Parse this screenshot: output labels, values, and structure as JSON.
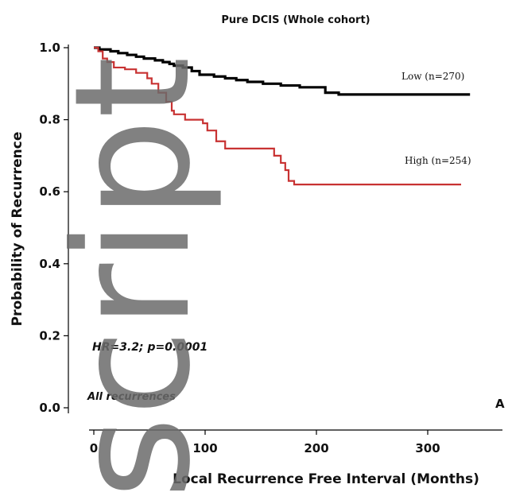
{
  "chart_data": {
    "type": "line",
    "title": "Pure DCIS (Whole cohort)",
    "xlabel": "Local Recurrence Free Interval (Months)",
    "ylabel": "Probability of Recurrence",
    "xlim": [
      -5,
      360
    ],
    "ylim": [
      -0.02,
      1.02
    ],
    "x_ticks": [
      0,
      100,
      200,
      300
    ],
    "x_tick_labels": [
      "0",
      "100",
      "200",
      "300"
    ],
    "y_ticks": [
      0.0,
      0.2,
      0.4,
      0.6,
      0.8,
      1.0
    ],
    "y_tick_labels": [
      "0.0",
      "0.2",
      "0.4",
      "0.6",
      "0.8",
      "1.0"
    ],
    "grid": false,
    "series": [
      {
        "name": "Low (n=270)",
        "color": "#000000",
        "step": true,
        "x": [
          0,
          5,
          15,
          22,
          30,
          38,
          45,
          55,
          62,
          68,
          72,
          80,
          88,
          95,
          108,
          118,
          128,
          138,
          152,
          168,
          185,
          208,
          220,
          250,
          280,
          338
        ],
        "y": [
          1.0,
          0.995,
          0.99,
          0.985,
          0.98,
          0.975,
          0.97,
          0.965,
          0.96,
          0.955,
          0.95,
          0.945,
          0.935,
          0.925,
          0.92,
          0.915,
          0.91,
          0.905,
          0.9,
          0.895,
          0.89,
          0.875,
          0.87,
          0.87,
          0.87,
          0.87
        ]
      },
      {
        "name": "High (n=254)",
        "color": "#c83232",
        "step": true,
        "x": [
          0,
          4,
          8,
          12,
          18,
          28,
          38,
          48,
          52,
          58,
          65,
          70,
          72,
          82,
          98,
          102,
          110,
          118,
          142,
          162,
          168,
          172,
          175,
          180,
          200,
          330
        ],
        "y": [
          1.0,
          0.99,
          0.97,
          0.96,
          0.945,
          0.94,
          0.93,
          0.915,
          0.9,
          0.875,
          0.85,
          0.825,
          0.815,
          0.8,
          0.79,
          0.77,
          0.74,
          0.72,
          0.72,
          0.7,
          0.68,
          0.66,
          0.63,
          0.62,
          0.62,
          0.62
        ]
      }
    ],
    "series_labels": [
      "Low (n=270)",
      "High (n=254)"
    ],
    "annotations": [
      "HR=3.2; p=0.0001",
      "All recurrences"
    ],
    "panel_letter": "A"
  },
  "watermark_text": "script"
}
